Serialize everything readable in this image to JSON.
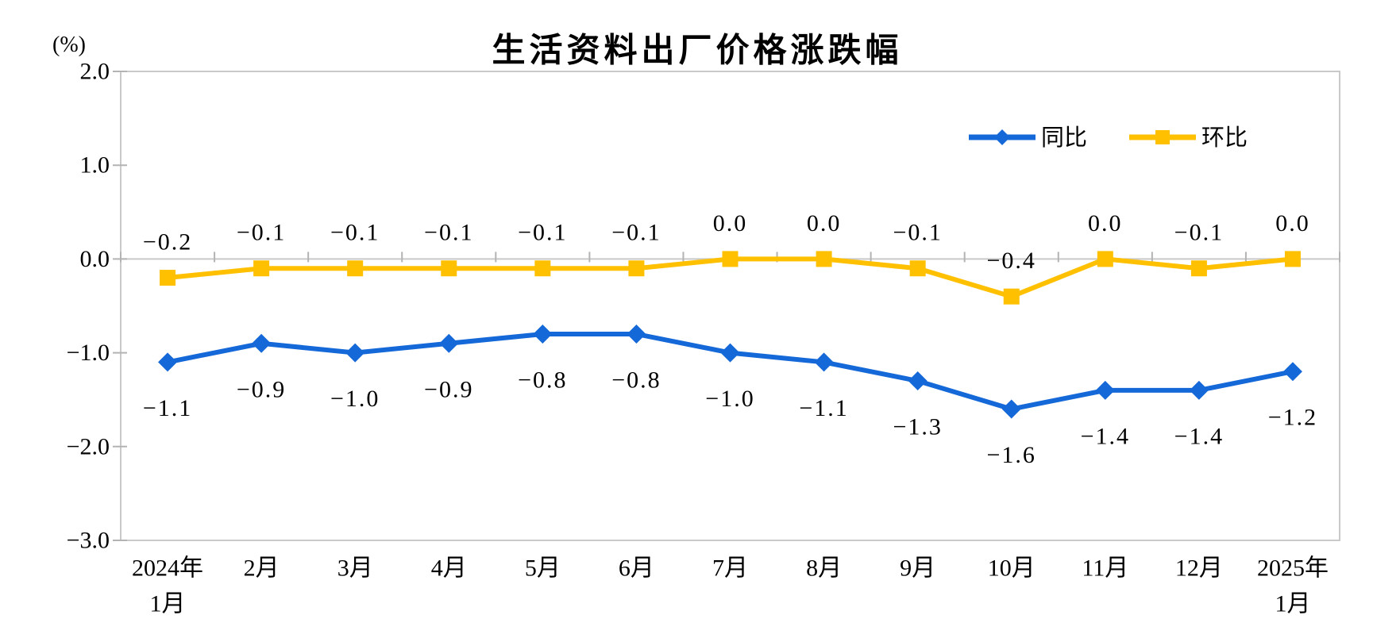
{
  "title": "生活资料出厂价格涨跌幅",
  "axis_unit": "(%)",
  "chart_data": {
    "type": "line",
    "categories": [
      [
        "2024年",
        "1月"
      ],
      "2月",
      "3月",
      "4月",
      "5月",
      "6月",
      "7月",
      "8月",
      "9月",
      "10月",
      "11月",
      "12月",
      [
        "2025年",
        "1月"
      ]
    ],
    "series": [
      {
        "name": "同比",
        "color": "#1568D8",
        "marker": "diamond",
        "label_position": "below",
        "values": [
          -1.1,
          -0.9,
          -1.0,
          -0.9,
          -0.8,
          -0.8,
          -1.0,
          -1.1,
          -1.3,
          -1.6,
          -1.4,
          -1.4,
          -1.2
        ]
      },
      {
        "name": "环比",
        "color": "#FFC000",
        "marker": "square",
        "label_position": "above",
        "values": [
          -0.2,
          -0.1,
          -0.1,
          -0.1,
          -0.1,
          -0.1,
          0.0,
          0.0,
          -0.1,
          -0.4,
          0.0,
          -0.1,
          0.0
        ]
      }
    ],
    "ylim": [
      -3.0,
      2.0
    ],
    "yticks": [
      2.0,
      1.0,
      0.0,
      -1.0,
      -2.0,
      -3.0
    ],
    "grid": "zero-line-only",
    "legend_position": "top-right-inside",
    "axis_color": "#C9C9C9",
    "tick_color": "#B3B3B3",
    "text_color": "#000000"
  }
}
